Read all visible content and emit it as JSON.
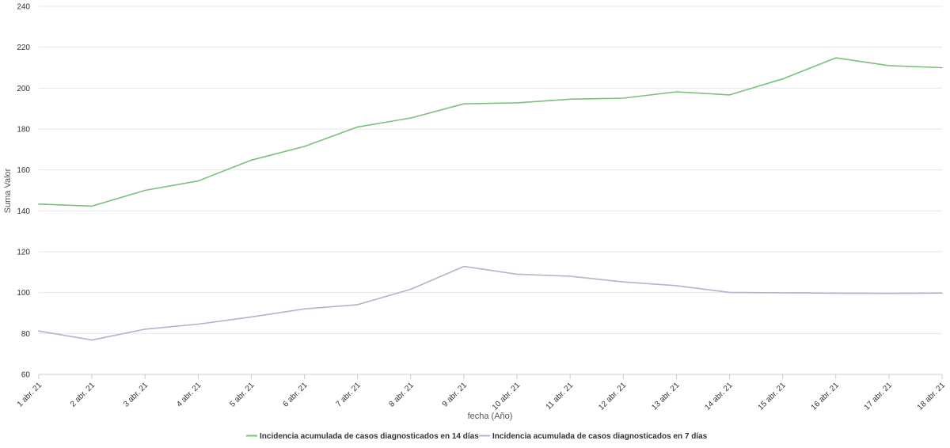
{
  "chart_data": {
    "type": "line",
    "title": "",
    "xlabel": "fecha (Año)",
    "ylabel": "Suma Valor",
    "ylim": [
      60,
      240
    ],
    "yticks": [
      60,
      80,
      100,
      120,
      140,
      160,
      180,
      200,
      220,
      240
    ],
    "grid": true,
    "legend_position": "bottom-center",
    "categories": [
      "1 abr. 21",
      "2 abr. 21",
      "3 abr. 21",
      "4 abr. 21",
      "5 abr. 21",
      "6 abr. 21",
      "7 abr. 21",
      "8 abr. 21",
      "9 abr. 21",
      "10 abr. 21",
      "11 abr. 21",
      "12 abr. 21",
      "13 abr. 21",
      "14 abr. 21",
      "15 abr. 21",
      "16 abr. 21",
      "17 abr. 21",
      "18 abr. 21"
    ],
    "series": [
      {
        "name": "Incidencia acumulada de casos diagnosticados en 14 días",
        "color": "#7cc07c",
        "values": [
          143.3,
          142.3,
          150.0,
          154.6,
          164.8,
          171.5,
          181.0,
          185.4,
          192.3,
          192.8,
          194.6,
          195.1,
          198.2,
          196.7,
          204.5,
          214.8,
          211.0,
          210.0
        ]
      },
      {
        "name": "Incidencia acumulada de casos diagnosticados en 7 días",
        "color": "#b8b0cc",
        "values": [
          81.2,
          76.8,
          82.1,
          84.6,
          88.1,
          92.0,
          94.1,
          101.6,
          112.8,
          109.0,
          108.0,
          105.2,
          103.4,
          100.1,
          99.9,
          99.7,
          99.6,
          99.8
        ]
      }
    ]
  }
}
